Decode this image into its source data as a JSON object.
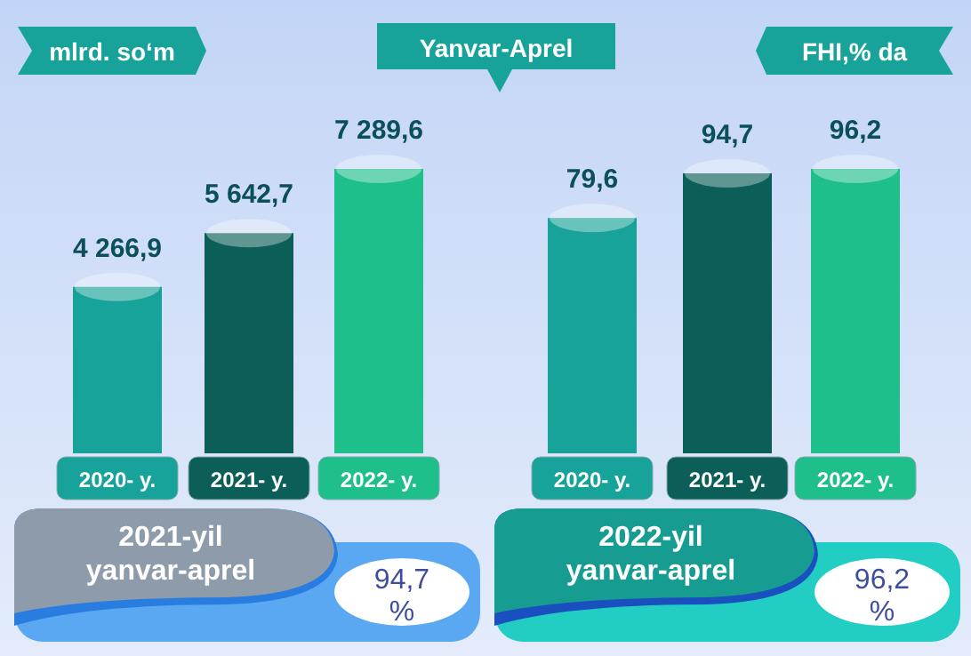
{
  "chart_data": [
    {
      "type": "bar",
      "title": "Yanvar-Aprel",
      "ylabel": "mlrd. so‘m",
      "categories": [
        "2020- y.",
        "2021- y.",
        "2022- y."
      ],
      "values": [
        4266.9,
        5642.7,
        7289.6
      ],
      "value_labels": [
        "4 266,9",
        "5 642,7",
        "7 289,6"
      ],
      "colors": [
        "#17a39a",
        "#0b5f58",
        "#1fbf8c"
      ],
      "annotations": [
        "2021-yil yanvar-aprel",
        "94,7 %"
      ]
    },
    {
      "type": "bar",
      "ylabel": "FHI,% da",
      "categories": [
        "2020- y.",
        "2021- y.",
        "2022- y."
      ],
      "values": [
        79.6,
        94.7,
        96.2
      ],
      "value_labels": [
        "79,6",
        "94,7",
        "96,2"
      ],
      "colors": [
        "#17a39a",
        "#0b5f58",
        "#1fbf8c"
      ],
      "annotations": [
        "2022-yil yanvar-aprel",
        "96,2 %"
      ]
    }
  ]
}
